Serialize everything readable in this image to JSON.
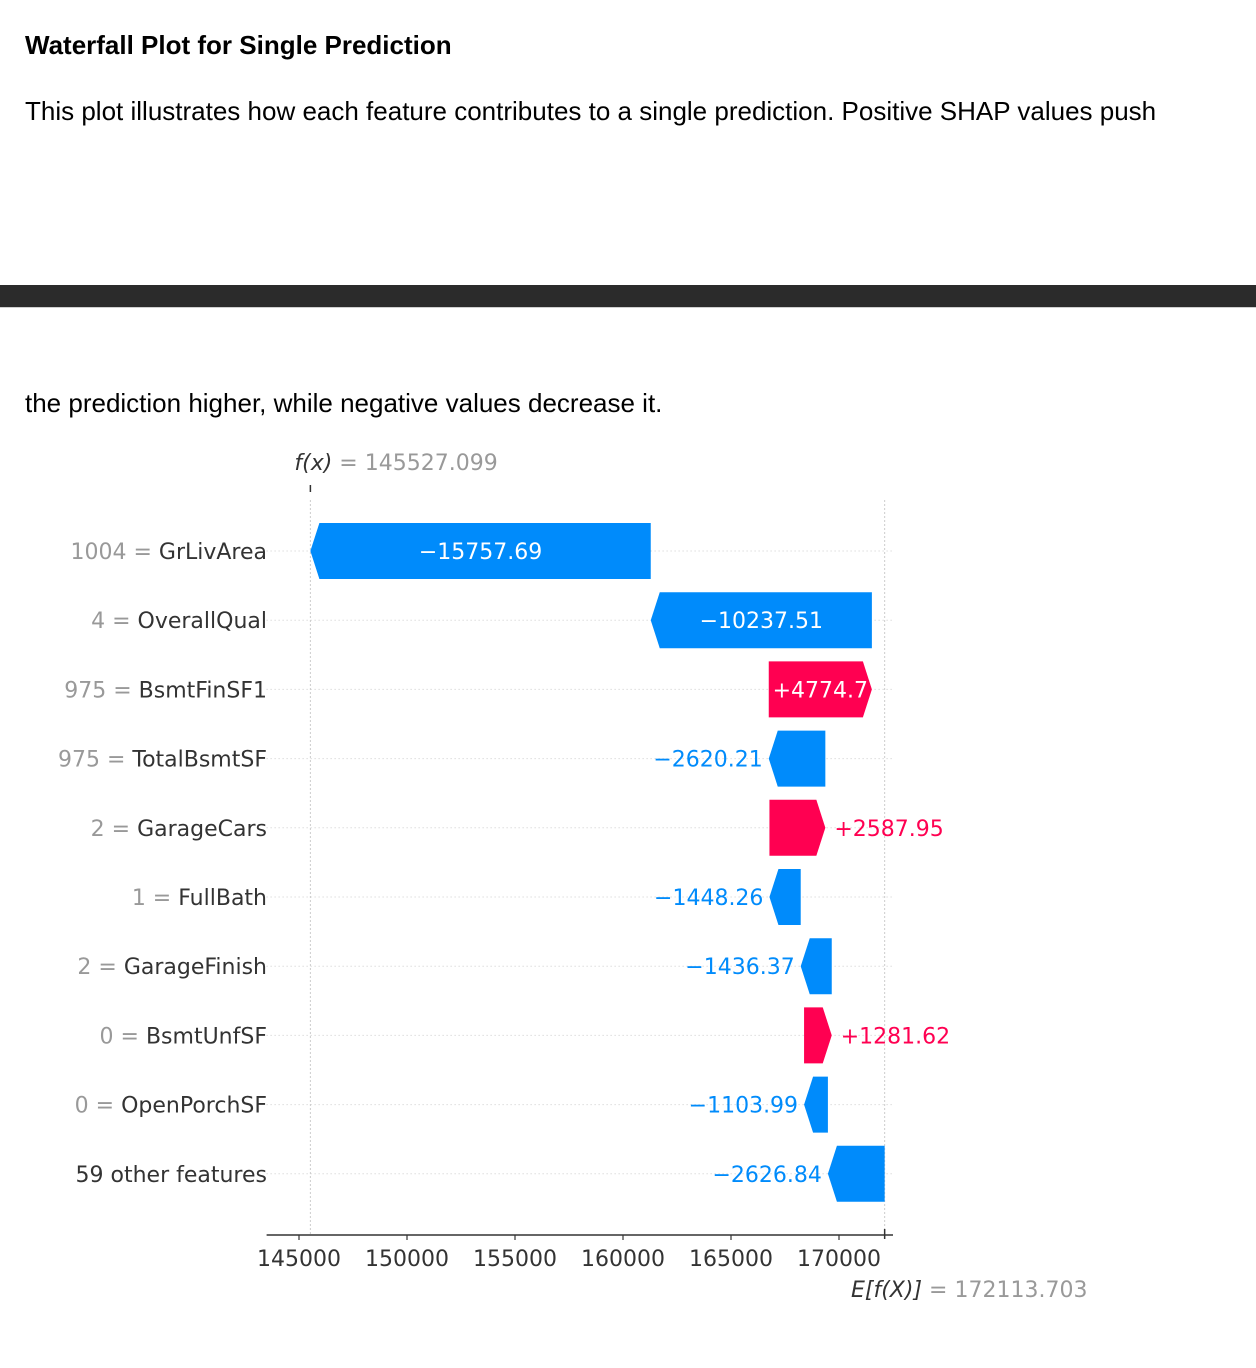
{
  "heading": "Waterfall Plot for Single Prediction",
  "paragraph_line1": "This plot illustrates how each feature contributes to a single prediction. Positive SHAP values push",
  "paragraph_line2": "the prediction higher, while negative values decrease it.",
  "chart_data": {
    "type": "waterfall",
    "fx_label": "f(x)",
    "fx_value": "145527.099",
    "ex_label": "E[f(X)]",
    "ex_value": "172113.703",
    "base_value": 172113.703,
    "final_value": 145527.099,
    "features": [
      {
        "value": "1004",
        "name": "GrLivArea",
        "shap": -15757.69,
        "label": "−15757.69"
      },
      {
        "value": "4",
        "name": "OverallQual",
        "shap": -10237.51,
        "label": "−10237.51"
      },
      {
        "value": "975",
        "name": "BsmtFinSF1",
        "shap": 4774.7,
        "label": "+4774.7"
      },
      {
        "value": "975",
        "name": "TotalBsmtSF",
        "shap": -2620.21,
        "label": "−2620.21"
      },
      {
        "value": "2",
        "name": "GarageCars",
        "shap": 2587.95,
        "label": "+2587.95"
      },
      {
        "value": "1",
        "name": "FullBath",
        "shap": -1448.26,
        "label": "−1448.26"
      },
      {
        "value": "2",
        "name": "GarageFinish",
        "shap": -1436.37,
        "label": "−1436.37"
      },
      {
        "value": "0",
        "name": "BsmtUnfSF",
        "shap": 1281.62,
        "label": "+1281.62"
      },
      {
        "value": "0",
        "name": "OpenPorchSF",
        "shap": -1103.99,
        "label": "−1103.99"
      },
      {
        "value": "",
        "name": "59 other features",
        "shap": -2626.84,
        "label": "−2626.84"
      }
    ],
    "x_ticks": [
      145000,
      150000,
      155000,
      160000,
      165000,
      170000
    ],
    "xlim": [
      143500,
      172500
    ],
    "colors": {
      "positive": "#ff0051",
      "negative": "#008bfb",
      "muted": "#999999",
      "axis": "#333333"
    }
  }
}
